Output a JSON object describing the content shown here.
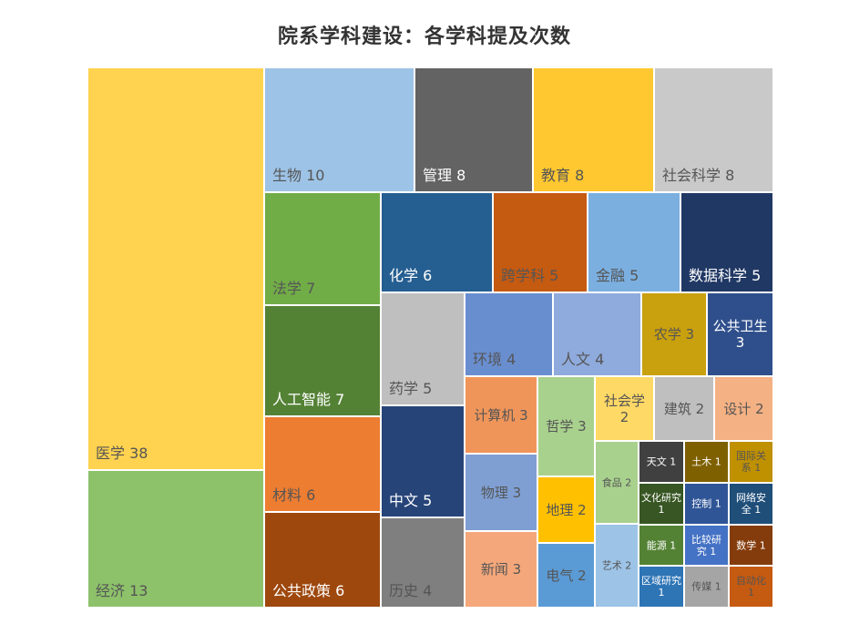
{
  "chart_data": {
    "type": "treemap",
    "title": "院系学科建设：各学科提及次数",
    "categories": [
      "医学",
      "经济",
      "生物",
      "管理",
      "教育",
      "社会科学",
      "法学",
      "人工智能",
      "材料",
      "公共政策",
      "化学",
      "跨学科",
      "金融",
      "数据科学",
      "药学",
      "中文",
      "历史",
      "环境",
      "人文",
      "农学",
      "公共卫生",
      "计算机",
      "物理",
      "新闻",
      "哲学",
      "地理",
      "电气",
      "社会学",
      "建筑",
      "设计",
      "食品",
      "艺术",
      "天文",
      "土木",
      "国际关系",
      "文化研究",
      "控制",
      "网络安全",
      "能源",
      "比较研究",
      "数学",
      "区域研究",
      "传媒",
      "自动化"
    ],
    "values": [
      38,
      13,
      10,
      8,
      8,
      8,
      7,
      7,
      6,
      6,
      6,
      5,
      5,
      5,
      5,
      5,
      4,
      4,
      4,
      3,
      3,
      3,
      3,
      3,
      3,
      2,
      2,
      2,
      2,
      2,
      2,
      2,
      1,
      1,
      1,
      1,
      1,
      1,
      1,
      1,
      1,
      1,
      1,
      1
    ],
    "colors": [
      "#ffd24f",
      "#8dc16a",
      "#9dc3e6",
      "#636363",
      "#ffc830",
      "#c9c9c9",
      "#71ad47",
      "#548235",
      "#ed7d31",
      "#9e480e",
      "#255e91",
      "#c55a11",
      "#7bafe0",
      "#203864",
      "#bfbfbf",
      "#264478",
      "#7f7f7f",
      "#698ed0",
      "#8faadc",
      "#c9a00e",
      "#2f4f8c",
      "#f0955a",
      "#7f9fd3",
      "#f4a77a",
      "#a9d18e",
      "#ffc000",
      "#5b9bd5",
      "#ffd966",
      "#bfbfbf",
      "#f4b183",
      "#a9d18e",
      "#9dc3e6",
      "#404040",
      "#7f6000",
      "#bf9000",
      "#375623",
      "#2f5597",
      "#1f4e79",
      "#548235",
      "#4472c4",
      "#843c0c",
      "#2e75b6",
      "#a5a5a5",
      "#c55a11"
    ]
  }
}
